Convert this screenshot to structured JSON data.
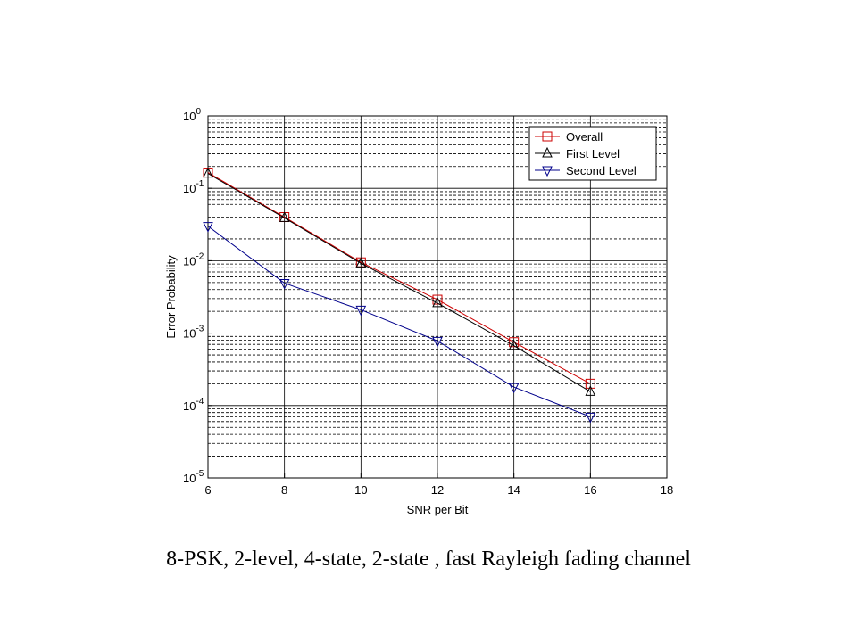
{
  "caption": "8-PSK, 2-level, 4-state, 2-state , fast Rayleigh fading channel",
  "chart_data": {
    "type": "line",
    "title": "",
    "xlabel": "SNR per Bit",
    "ylabel": "Error Probability",
    "xlim": [
      6,
      18
    ],
    "ylim": [
      1e-05,
      1
    ],
    "yscale": "log",
    "grid": true,
    "x_ticks": [
      6,
      8,
      10,
      12,
      14,
      16,
      18
    ],
    "y_ticks": [
      {
        "base": "10",
        "exp": "-5",
        "value": 1e-05
      },
      {
        "base": "10",
        "exp": "-4",
        "value": 0.0001
      },
      {
        "base": "10",
        "exp": "-3",
        "value": 0.001
      },
      {
        "base": "10",
        "exp": "-2",
        "value": 0.01
      },
      {
        "base": "10",
        "exp": "-1",
        "value": 0.1
      },
      {
        "base": "10",
        "exp": "0",
        "value": 1
      }
    ],
    "legend_position": "top-right",
    "series": [
      {
        "name": "Overall",
        "color": "#cc0000",
        "marker": "square",
        "x": [
          6,
          8,
          10,
          12,
          14,
          16
        ],
        "y": [
          0.165,
          0.04,
          0.0095,
          0.0029,
          0.00075,
          0.0002
        ]
      },
      {
        "name": "First Level",
        "color": "#000000",
        "marker": "triangle-up",
        "x": [
          6,
          8,
          10,
          12,
          14,
          16
        ],
        "y": [
          0.16,
          0.039,
          0.0092,
          0.0026,
          0.00067,
          0.000155
        ]
      },
      {
        "name": "Second Level",
        "color": "#00008b",
        "marker": "triangle-down",
        "x": [
          6,
          8,
          10,
          12,
          14,
          16
        ],
        "y": [
          0.03,
          0.0049,
          0.0021,
          0.00078,
          0.00018,
          7e-05
        ]
      }
    ]
  }
}
